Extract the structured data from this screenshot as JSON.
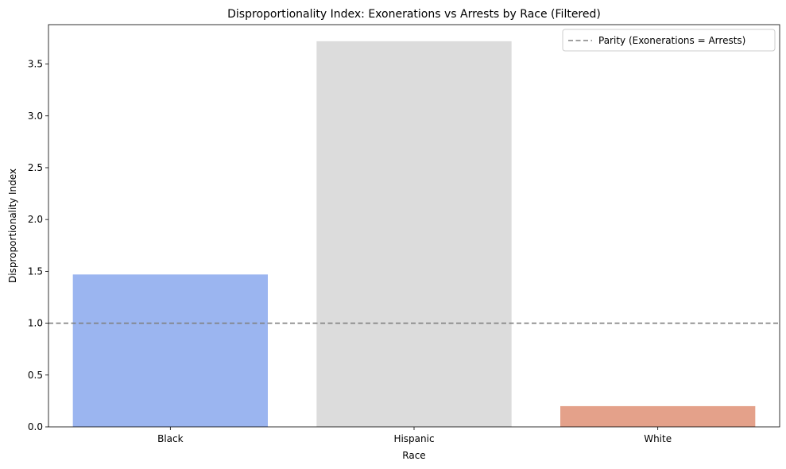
{
  "chart_data": {
    "type": "bar",
    "title": "Disproportionality Index: Exonerations vs Arrests by Race (Filtered)",
    "xlabel": "Race",
    "ylabel": "Disproportionality Index",
    "categories": [
      "Black",
      "Hispanic",
      "White"
    ],
    "values": [
      1.47,
      3.72,
      0.2
    ],
    "bar_colors": [
      "#9bb5f0",
      "#dcdcdc",
      "#e4a18a"
    ],
    "ylim": [
      0,
      3.88
    ],
    "yticks": [
      0.0,
      0.5,
      1.0,
      1.5,
      2.0,
      2.5,
      3.0,
      3.5
    ],
    "ytick_labels": [
      "0.0",
      "0.5",
      "1.0",
      "1.5",
      "2.0",
      "2.5",
      "3.0",
      "3.5"
    ],
    "reference_line": {
      "value": 1.0,
      "label": "Parity (Exonerations = Arrests)",
      "color": "#808080",
      "style": "dashed"
    },
    "legend": {
      "placement": "top-right",
      "entries": [
        "Parity (Exonerations = Arrests)"
      ]
    },
    "grid": false
  }
}
